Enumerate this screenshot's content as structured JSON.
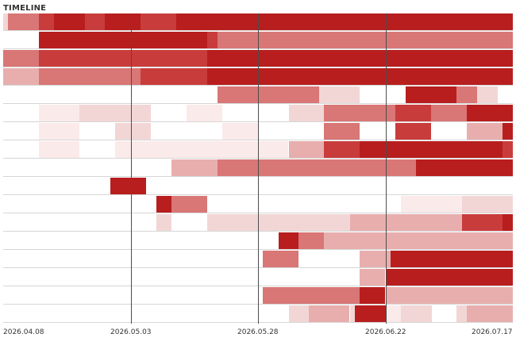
{
  "panel": {
    "title": "TIMELINE"
  },
  "timeline": {
    "start_date": "2026-04-08",
    "end_date": "2026-07-17",
    "tick_labels": [
      "2026.04.08",
      "2026.05.03",
      "2026.05.28",
      "2026.06.22",
      "2026.07.17"
    ],
    "palette": {
      "level_1": "#f2d6d6",
      "level_2": "#e8aeae",
      "level_3": "#d97676",
      "level_4": "#c93c3c",
      "level_5": "#b81e1e",
      "faint": "#fbeaea",
      "gridline": "#4d4d4d",
      "row_divider": "#d6d6d6"
    },
    "rows": [
      {
        "segments": [
          {
            "start": 0.0,
            "end": 0.01,
            "level": 1
          },
          {
            "start": 0.01,
            "end": 0.07,
            "level": 3
          },
          {
            "start": 0.07,
            "end": 0.1,
            "level": 4
          },
          {
            "start": 0.1,
            "end": 0.16,
            "level": 5
          },
          {
            "start": 0.16,
            "end": 0.2,
            "level": 4
          },
          {
            "start": 0.2,
            "end": 0.27,
            "level": 5
          },
          {
            "start": 0.27,
            "end": 0.34,
            "level": 4
          },
          {
            "start": 0.34,
            "end": 0.39,
            "level": 5
          },
          {
            "start": 0.39,
            "end": 1.0,
            "level": 5
          }
        ]
      },
      {
        "segments": [
          {
            "start": 0.07,
            "end": 0.4,
            "level": 5
          },
          {
            "start": 0.4,
            "end": 0.42,
            "level": 4
          },
          {
            "start": 0.42,
            "end": 1.0,
            "level": 3
          }
        ]
      },
      {
        "segments": [
          {
            "start": 0.0,
            "end": 0.01,
            "level": 3
          },
          {
            "start": 0.01,
            "end": 0.07,
            "level": 3
          },
          {
            "start": 0.07,
            "end": 0.13,
            "level": 4
          },
          {
            "start": 0.13,
            "end": 0.2,
            "level": 4
          },
          {
            "start": 0.2,
            "end": 0.27,
            "level": 4
          },
          {
            "start": 0.27,
            "end": 0.34,
            "level": 4
          },
          {
            "start": 0.34,
            "end": 0.4,
            "level": 4
          },
          {
            "start": 0.4,
            "end": 1.0,
            "level": 5
          }
        ]
      },
      {
        "segments": [
          {
            "start": 0.0,
            "end": 0.01,
            "level": 2
          },
          {
            "start": 0.01,
            "end": 0.07,
            "level": 2
          },
          {
            "start": 0.07,
            "end": 0.13,
            "level": 3
          },
          {
            "start": 0.13,
            "end": 0.2,
            "level": 3
          },
          {
            "start": 0.2,
            "end": 0.27,
            "level": 3
          },
          {
            "start": 0.27,
            "end": 0.34,
            "level": 4
          },
          {
            "start": 0.34,
            "end": 0.4,
            "level": 4
          },
          {
            "start": 0.4,
            "end": 1.0,
            "level": 5
          }
        ]
      },
      {
        "segments": [
          {
            "start": 0.42,
            "end": 0.62,
            "level": 3
          },
          {
            "start": 0.62,
            "end": 0.7,
            "level": 1
          },
          {
            "start": 0.79,
            "end": 0.89,
            "level": 5
          },
          {
            "start": 0.89,
            "end": 0.93,
            "level": 3
          },
          {
            "start": 0.93,
            "end": 0.97,
            "level": 1
          }
        ]
      },
      {
        "segments": [
          {
            "start": 0.07,
            "end": 0.15,
            "level": 0
          },
          {
            "start": 0.15,
            "end": 0.22,
            "level": 1
          },
          {
            "start": 0.22,
            "end": 0.29,
            "level": 1
          },
          {
            "start": 0.36,
            "end": 0.43,
            "level": 0
          },
          {
            "start": 0.56,
            "end": 0.63,
            "level": 1
          },
          {
            "start": 0.63,
            "end": 0.7,
            "level": 3
          },
          {
            "start": 0.7,
            "end": 0.77,
            "level": 3
          },
          {
            "start": 0.77,
            "end": 0.84,
            "level": 4
          },
          {
            "start": 0.84,
            "end": 0.91,
            "level": 3
          },
          {
            "start": 0.91,
            "end": 0.98,
            "level": 5
          },
          {
            "start": 0.98,
            "end": 1.0,
            "level": 5
          }
        ]
      },
      {
        "segments": [
          {
            "start": 0.07,
            "end": 0.15,
            "level": 0
          },
          {
            "start": 0.22,
            "end": 0.29,
            "level": 1
          },
          {
            "start": 0.43,
            "end": 0.5,
            "level": 0
          },
          {
            "start": 0.63,
            "end": 0.7,
            "level": 3
          },
          {
            "start": 0.77,
            "end": 0.84,
            "level": 4
          },
          {
            "start": 0.91,
            "end": 0.98,
            "level": 2
          },
          {
            "start": 0.98,
            "end": 1.0,
            "level": 5
          }
        ]
      },
      {
        "segments": [
          {
            "start": 0.07,
            "end": 0.15,
            "level": 0
          },
          {
            "start": 0.22,
            "end": 0.56,
            "level": 0
          },
          {
            "start": 0.56,
            "end": 0.63,
            "level": 2
          },
          {
            "start": 0.63,
            "end": 0.7,
            "level": 4
          },
          {
            "start": 0.7,
            "end": 0.91,
            "level": 5
          },
          {
            "start": 0.91,
            "end": 0.98,
            "level": 5
          },
          {
            "start": 0.98,
            "end": 1.0,
            "level": 4
          }
        ]
      },
      {
        "segments": [
          {
            "start": 0.33,
            "end": 0.42,
            "level": 2
          },
          {
            "start": 0.42,
            "end": 0.54,
            "level": 3
          },
          {
            "start": 0.54,
            "end": 0.61,
            "level": 3
          },
          {
            "start": 0.61,
            "end": 0.81,
            "level": 3
          },
          {
            "start": 0.81,
            "end": 0.95,
            "level": 5
          },
          {
            "start": 0.95,
            "end": 1.0,
            "level": 5
          }
        ]
      },
      {
        "segments": [
          {
            "start": 0.21,
            "end": 0.28,
            "level": 5
          }
        ]
      },
      {
        "segments": [
          {
            "start": 0.3,
            "end": 0.33,
            "level": 5
          },
          {
            "start": 0.33,
            "end": 0.4,
            "level": 3
          },
          {
            "start": 0.78,
            "end": 0.9,
            "level": 0
          },
          {
            "start": 0.9,
            "end": 1.0,
            "level": 1
          }
        ]
      },
      {
        "segments": [
          {
            "start": 0.3,
            "end": 0.33,
            "level": 1
          },
          {
            "start": 0.4,
            "end": 0.48,
            "level": 1
          },
          {
            "start": 0.48,
            "end": 0.57,
            "level": 1
          },
          {
            "start": 0.57,
            "end": 0.68,
            "level": 1
          },
          {
            "start": 0.68,
            "end": 0.84,
            "level": 2
          },
          {
            "start": 0.84,
            "end": 0.9,
            "level": 2
          },
          {
            "start": 0.9,
            "end": 0.98,
            "level": 4
          },
          {
            "start": 0.98,
            "end": 1.0,
            "level": 5
          }
        ]
      },
      {
        "segments": [
          {
            "start": 0.54,
            "end": 0.58,
            "level": 5
          },
          {
            "start": 0.58,
            "end": 0.63,
            "level": 3
          },
          {
            "start": 0.63,
            "end": 1.0,
            "level": 2
          }
        ]
      },
      {
        "segments": [
          {
            "start": 0.51,
            "end": 0.58,
            "level": 3
          },
          {
            "start": 0.7,
            "end": 0.76,
            "level": 2
          },
          {
            "start": 0.76,
            "end": 1.0,
            "level": 5
          }
        ]
      },
      {
        "segments": [
          {
            "start": 0.7,
            "end": 0.75,
            "level": 2
          },
          {
            "start": 0.75,
            "end": 1.0,
            "level": 5
          }
        ]
      },
      {
        "segments": [
          {
            "start": 0.51,
            "end": 0.7,
            "level": 3
          },
          {
            "start": 0.7,
            "end": 0.75,
            "level": 5
          },
          {
            "start": 0.75,
            "end": 1.0,
            "level": 2
          }
        ]
      },
      {
        "segments": [
          {
            "start": 0.56,
            "end": 0.6,
            "level": 1
          },
          {
            "start": 0.6,
            "end": 0.68,
            "level": 2
          },
          {
            "start": 0.68,
            "end": 0.69,
            "level": 1
          },
          {
            "start": 0.69,
            "end": 0.75,
            "level": 5
          },
          {
            "start": 0.75,
            "end": 0.78,
            "level": 0
          },
          {
            "start": 0.78,
            "end": 0.84,
            "level": 1
          },
          {
            "start": 0.89,
            "end": 0.91,
            "level": 1
          },
          {
            "start": 0.91,
            "end": 1.0,
            "level": 2
          }
        ]
      }
    ]
  }
}
